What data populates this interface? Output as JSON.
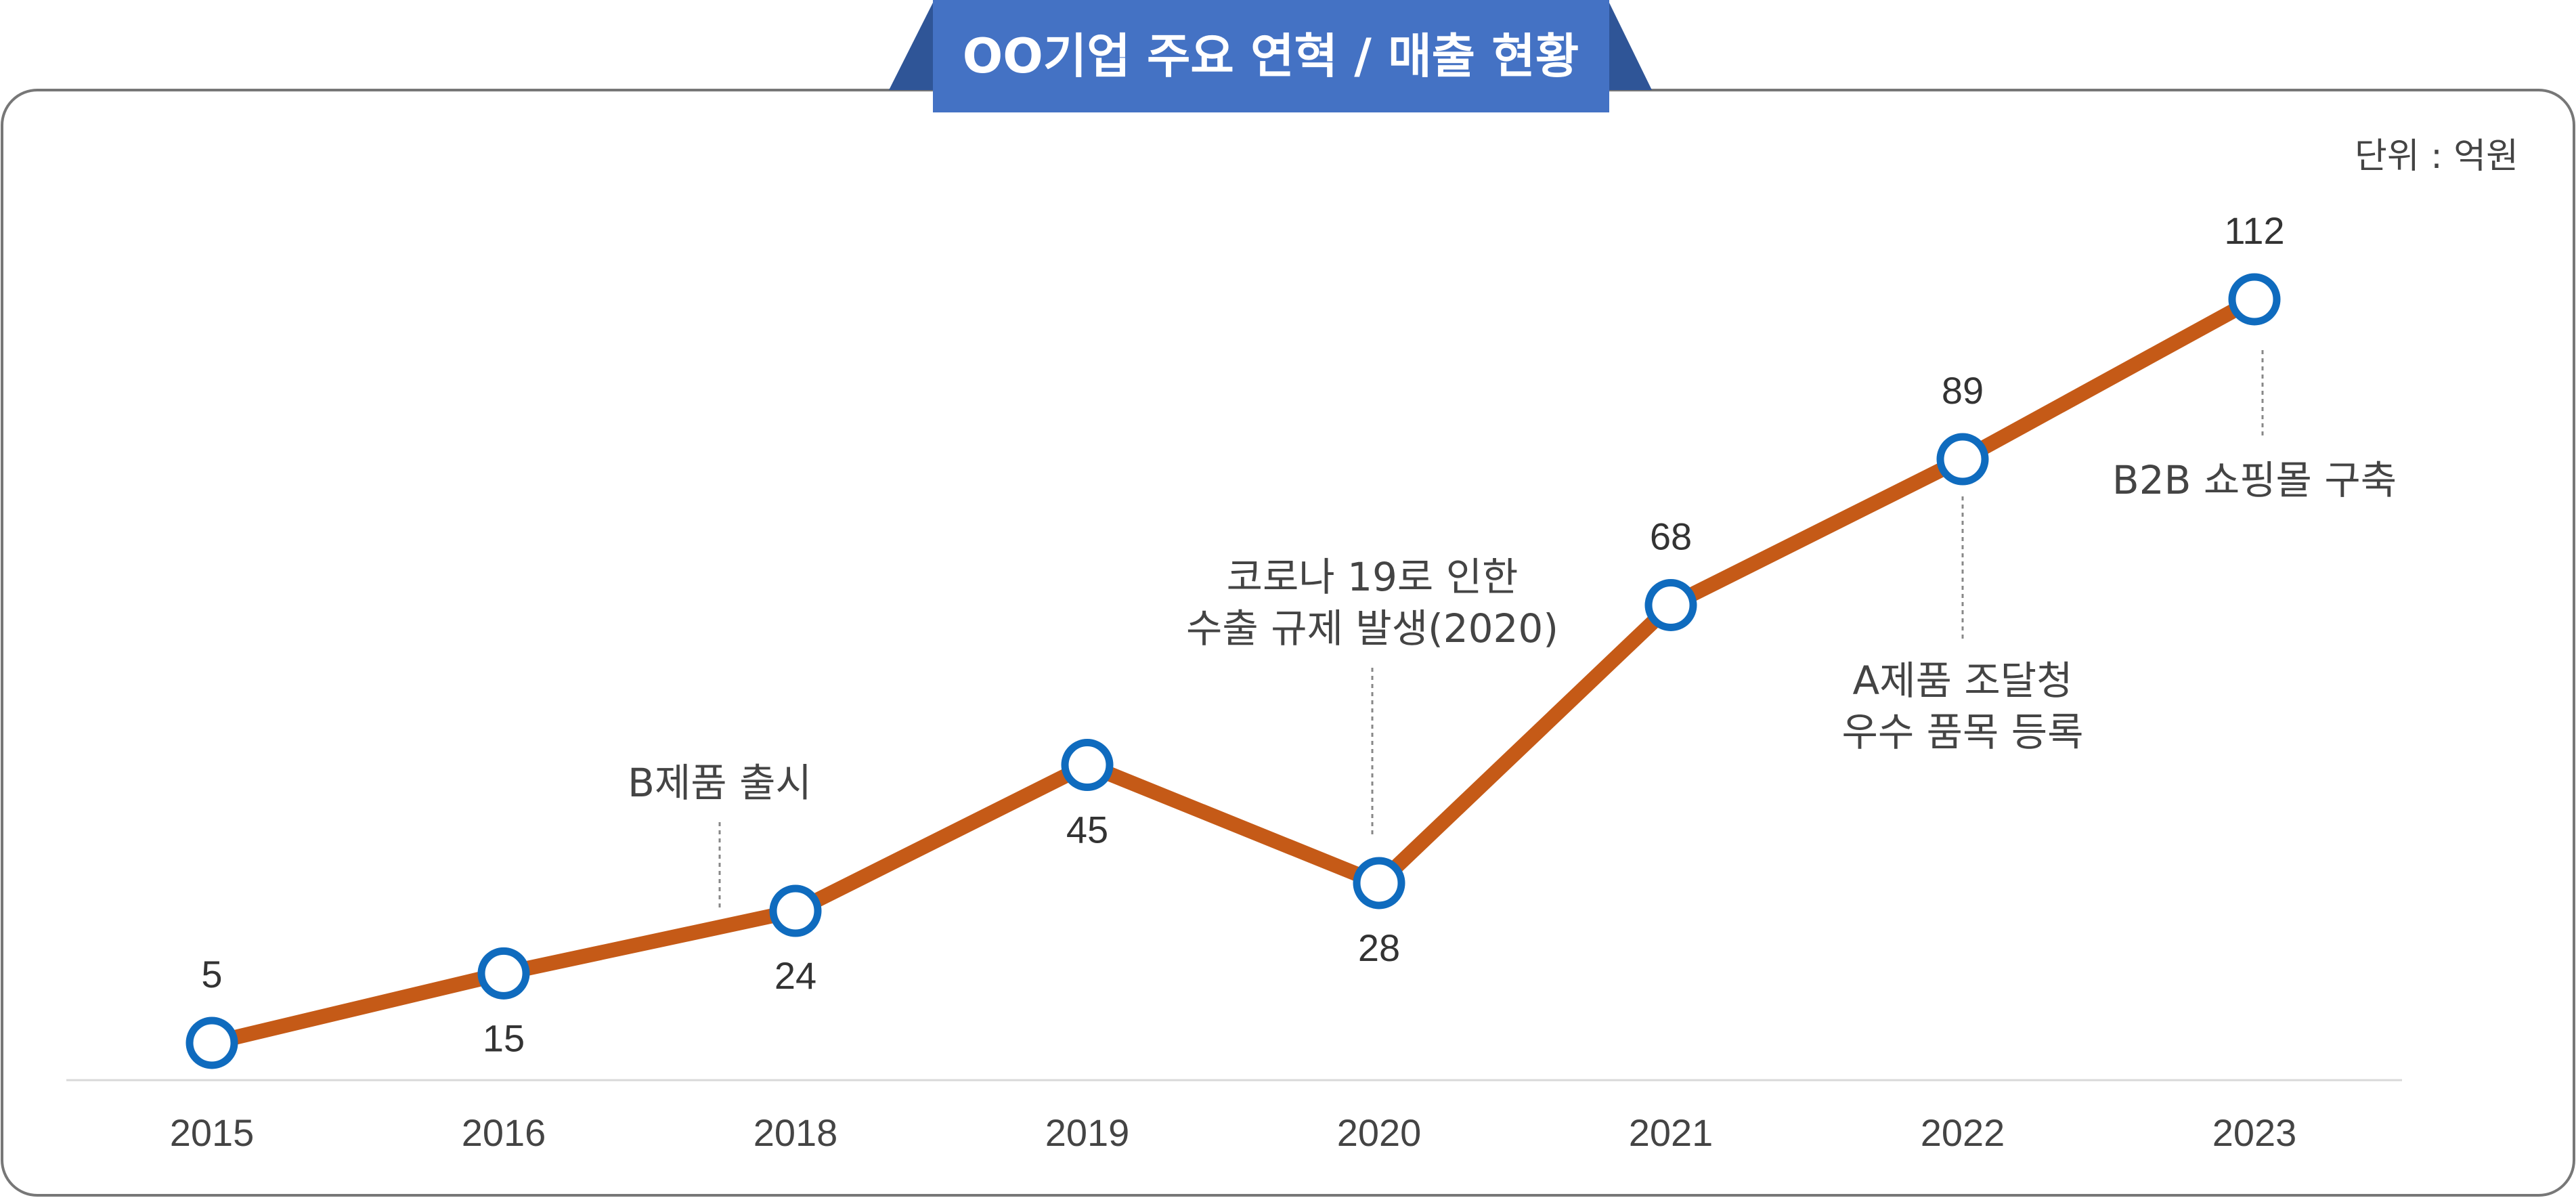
{
  "chart_data": {
    "type": "line",
    "title": "OO기업 주요 연혁 / 매출 현황",
    "unit": "단위 : 억원",
    "categories": [
      "2015",
      "2016",
      "2018",
      "2019",
      "2020",
      "2021",
      "2022",
      "2023"
    ],
    "series": [
      {
        "values": [
          5,
          15,
          24,
          45,
          28,
          68,
          89,
          112
        ]
      }
    ],
    "ylim": [
      0,
      112
    ],
    "grid": false,
    "legend": "none",
    "annotations": [
      {
        "category": "2018",
        "lines": [
          "B제품 출시"
        ]
      },
      {
        "category": "2020",
        "lines": [
          "코로나 19로 인한",
          "수출 규제 발생(2020)"
        ]
      },
      {
        "category": "2022",
        "lines": [
          "A제품  조달청",
          "우수 품목 등록"
        ]
      },
      {
        "category": "2023",
        "lines": [
          "B2B 쇼핑몰 구축"
        ]
      }
    ],
    "colors": {
      "line": "#C55A17",
      "marker_stroke": "#0F6BBE",
      "marker_fill": "#FFFFFF",
      "title_bg": "#4472C4",
      "title_tab": "#2F5597",
      "frame": "#777777",
      "baseline": "#D9D9D9"
    }
  }
}
